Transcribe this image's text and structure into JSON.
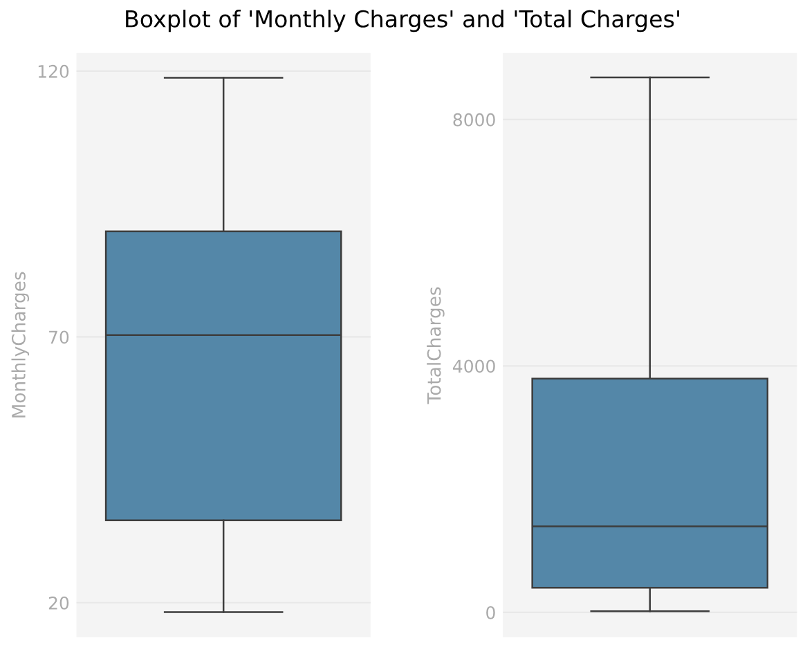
{
  "chart_data": [
    {
      "type": "box",
      "title": "Boxplot of 'Monthly Charges' and 'Total Charges'",
      "ylabel": "MonthlyCharges",
      "categories": [
        null
      ],
      "color": "#5487a8",
      "boxes": [
        {
          "low": 18.25,
          "q1": 35.5,
          "median": 70.35,
          "q3": 89.85,
          "high": 118.75
        }
      ],
      "ylim": [
        13.5,
        123.4
      ],
      "yticks": [
        20,
        70,
        120
      ],
      "grid": "y"
    },
    {
      "type": "box",
      "ylabel": "TotalCharges",
      "categories": [
        null
      ],
      "color": "#5487a8",
      "boxes": [
        {
          "low": 19,
          "q1": 401,
          "median": 1397,
          "q3": 3794,
          "high": 8684
        }
      ],
      "ylim": [
        -404,
        9079
      ],
      "yticks": [
        0,
        4000,
        8000
      ],
      "grid": "y"
    }
  ]
}
